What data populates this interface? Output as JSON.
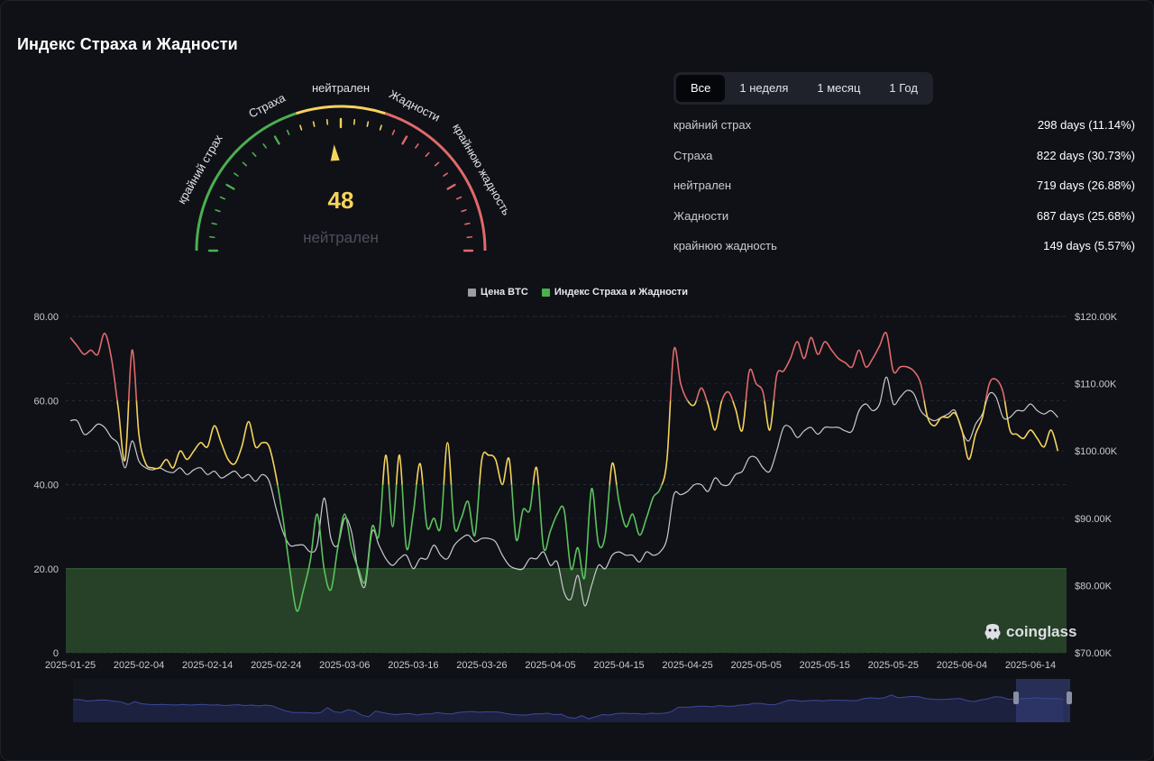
{
  "title": "Индекс Страха и Жадности",
  "gauge": {
    "value": "48",
    "value_label": "нейтрален",
    "zones": [
      "крайний страх",
      "Страха",
      "нейтрален",
      "Жадности",
      "крайнюю жадность"
    ],
    "colors": {
      "fear": "#4caf50",
      "neutral": "#f6d35b",
      "greed": "#e06a6a"
    }
  },
  "tabs": [
    "Все",
    "1 неделя",
    "1 месяц",
    "1 Год"
  ],
  "stats": [
    {
      "label": "крайний страх",
      "value": "298 days (11.14%)"
    },
    {
      "label": "Страха",
      "value": "822 days (30.73%)"
    },
    {
      "label": "нейтрален",
      "value": "719 days (26.88%)"
    },
    {
      "label": "Жадности",
      "value": "687 days (25.68%)"
    },
    {
      "label": "крайнюю жадность",
      "value": "149 days (5.57%)"
    }
  ],
  "legend": {
    "btc": "Цена BTC",
    "index": "Индекс Страха и Жадности"
  },
  "logo": "coinglass",
  "chart_data": {
    "type": "line",
    "x_ticks": [
      "2025-01-25",
      "2025-02-04",
      "2025-02-14",
      "2025-02-24",
      "2025-03-06",
      "2025-03-16",
      "2025-03-26",
      "2025-04-05",
      "2025-04-15",
      "2025-04-25",
      "2025-05-05",
      "2025-05-15",
      "2025-05-25",
      "2025-06-04",
      "2025-06-14"
    ],
    "y_left_ticks": [
      "0",
      "20.00",
      "40.00",
      "60.00",
      "80.00"
    ],
    "y_left_range": [
      0,
      80
    ],
    "y_right_ticks": [
      "$70.00K",
      "$80.00K",
      "$90.00K",
      "$100.00K",
      "$110.00K",
      "$120.00K"
    ],
    "y_right_range": [
      70000,
      120000
    ],
    "extreme_fear_band": [
      0,
      20
    ],
    "x_range_days": [
      0,
      145
    ],
    "series": [
      {
        "name": "Индекс Страха и Жадности",
        "points": [
          [
            0,
            75
          ],
          [
            1,
            73
          ],
          [
            2,
            71
          ],
          [
            3,
            72
          ],
          [
            4,
            71
          ],
          [
            5,
            76
          ],
          [
            6,
            70
          ],
          [
            7,
            58
          ],
          [
            8,
            46
          ],
          [
            9,
            72
          ],
          [
            10,
            52
          ],
          [
            11,
            45
          ],
          [
            12,
            44
          ],
          [
            13,
            44
          ],
          [
            14,
            46
          ],
          [
            15,
            44
          ],
          [
            16,
            48
          ],
          [
            17,
            46
          ],
          [
            18,
            48
          ],
          [
            19,
            50
          ],
          [
            20,
            49
          ],
          [
            21,
            54
          ],
          [
            22,
            50
          ],
          [
            23,
            46
          ],
          [
            24,
            45
          ],
          [
            25,
            49
          ],
          [
            26,
            55
          ],
          [
            27,
            49
          ],
          [
            28,
            50
          ],
          [
            29,
            49
          ],
          [
            30,
            42
          ],
          [
            31,
            32
          ],
          [
            32,
            20
          ],
          [
            33,
            10
          ],
          [
            34,
            15
          ],
          [
            35,
            22
          ],
          [
            36,
            33
          ],
          [
            37,
            20
          ],
          [
            38,
            15
          ],
          [
            39,
            25
          ],
          [
            40,
            33
          ],
          [
            41,
            25
          ],
          [
            42,
            20
          ],
          [
            43,
            17
          ],
          [
            44,
            30
          ],
          [
            45,
            28
          ],
          [
            46,
            47
          ],
          [
            47,
            30
          ],
          [
            48,
            47
          ],
          [
            49,
            25
          ],
          [
            50,
            33
          ],
          [
            51,
            45
          ],
          [
            52,
            30
          ],
          [
            53,
            32
          ],
          [
            54,
            30
          ],
          [
            55,
            50
          ],
          [
            56,
            30
          ],
          [
            57,
            32
          ],
          [
            58,
            36
          ],
          [
            59,
            28
          ],
          [
            60,
            46
          ],
          [
            61,
            47
          ],
          [
            62,
            46
          ],
          [
            63,
            40
          ],
          [
            64,
            46
          ],
          [
            65,
            27
          ],
          [
            66,
            34
          ],
          [
            67,
            34
          ],
          [
            68,
            44
          ],
          [
            69,
            25
          ],
          [
            70,
            29
          ],
          [
            71,
            33
          ],
          [
            72,
            34
          ],
          [
            73,
            20
          ],
          [
            74,
            25
          ],
          [
            75,
            18
          ],
          [
            76,
            39
          ],
          [
            77,
            26
          ],
          [
            78,
            28
          ],
          [
            79,
            45
          ],
          [
            80,
            36
          ],
          [
            81,
            30
          ],
          [
            82,
            33
          ],
          [
            83,
            28
          ],
          [
            84,
            32
          ],
          [
            85,
            37
          ],
          [
            86,
            39
          ],
          [
            87,
            46
          ],
          [
            88,
            72
          ],
          [
            89,
            64
          ],
          [
            90,
            60
          ],
          [
            91,
            59
          ],
          [
            92,
            63
          ],
          [
            93,
            59
          ],
          [
            94,
            53
          ],
          [
            95,
            60
          ],
          [
            96,
            62
          ],
          [
            97,
            58
          ],
          [
            98,
            53
          ],
          [
            99,
            67
          ],
          [
            100,
            64
          ],
          [
            101,
            62
          ],
          [
            102,
            53
          ],
          [
            103,
            66
          ],
          [
            104,
            67
          ],
          [
            105,
            70
          ],
          [
            106,
            74
          ],
          [
            107,
            70
          ],
          [
            108,
            75
          ],
          [
            109,
            71
          ],
          [
            110,
            74
          ],
          [
            111,
            72
          ],
          [
            112,
            70
          ],
          [
            113,
            69
          ],
          [
            114,
            68
          ],
          [
            115,
            72
          ],
          [
            116,
            68
          ],
          [
            117,
            70
          ],
          [
            118,
            73
          ],
          [
            119,
            76
          ],
          [
            120,
            67
          ],
          [
            121,
            68
          ],
          [
            122,
            68
          ],
          [
            123,
            67
          ],
          [
            124,
            64
          ],
          [
            125,
            56
          ],
          [
            126,
            54
          ],
          [
            127,
            56
          ],
          [
            128,
            56
          ],
          [
            129,
            57
          ],
          [
            130,
            53
          ],
          [
            131,
            46
          ],
          [
            132,
            52
          ],
          [
            133,
            56
          ],
          [
            134,
            64
          ],
          [
            135,
            65
          ],
          [
            136,
            62
          ],
          [
            137,
            53
          ],
          [
            138,
            52
          ],
          [
            139,
            51
          ],
          [
            140,
            53
          ],
          [
            141,
            51
          ],
          [
            142,
            49
          ],
          [
            143,
            53
          ],
          [
            144,
            48
          ]
        ]
      },
      {
        "name": "Цена BTC",
        "points": [
          [
            0,
            104500
          ],
          [
            1,
            104500
          ],
          [
            2,
            102500
          ],
          [
            3,
            103000
          ],
          [
            4,
            104000
          ],
          [
            5,
            103500
          ],
          [
            6,
            102000
          ],
          [
            7,
            101000
          ],
          [
            8,
            97500
          ],
          [
            9,
            101500
          ],
          [
            10,
            98500
          ],
          [
            11,
            97500
          ],
          [
            12,
            97200
          ],
          [
            13,
            97500
          ],
          [
            14,
            97000
          ],
          [
            15,
            96800
          ],
          [
            16,
            97500
          ],
          [
            17,
            96500
          ],
          [
            18,
            97200
          ],
          [
            19,
            97500
          ],
          [
            20,
            96500
          ],
          [
            21,
            97000
          ],
          [
            22,
            96000
          ],
          [
            23,
            96500
          ],
          [
            24,
            97000
          ],
          [
            25,
            96000
          ],
          [
            26,
            96500
          ],
          [
            27,
            95500
          ],
          [
            28,
            96500
          ],
          [
            29,
            95500
          ],
          [
            30,
            91500
          ],
          [
            31,
            88000
          ],
          [
            32,
            86000
          ],
          [
            33,
            86000
          ],
          [
            34,
            86000
          ],
          [
            35,
            85000
          ],
          [
            36,
            86000
          ],
          [
            37,
            93000
          ],
          [
            38,
            87000
          ],
          [
            39,
            86000
          ],
          [
            40,
            90000
          ],
          [
            41,
            88000
          ],
          [
            42,
            82000
          ],
          [
            43,
            80000
          ],
          [
            44,
            88000
          ],
          [
            45,
            86000
          ],
          [
            46,
            84000
          ],
          [
            47,
            83000
          ],
          [
            48,
            84000
          ],
          [
            49,
            84500
          ],
          [
            50,
            82500
          ],
          [
            51,
            84000
          ],
          [
            52,
            84000
          ],
          [
            53,
            86000
          ],
          [
            54,
            84500
          ],
          [
            55,
            84000
          ],
          [
            56,
            86000
          ],
          [
            57,
            87000
          ],
          [
            58,
            87500
          ],
          [
            59,
            86500
          ],
          [
            60,
            87000
          ],
          [
            61,
            87000
          ],
          [
            62,
            86500
          ],
          [
            63,
            84500
          ],
          [
            64,
            83000
          ],
          [
            65,
            82500
          ],
          [
            66,
            82500
          ],
          [
            67,
            84000
          ],
          [
            68,
            84000
          ],
          [
            69,
            85000
          ],
          [
            70,
            83000
          ],
          [
            71,
            83500
          ],
          [
            72,
            79000
          ],
          [
            73,
            78000
          ],
          [
            74,
            81500
          ],
          [
            75,
            77000
          ],
          [
            76,
            80000
          ],
          [
            77,
            83000
          ],
          [
            78,
            82500
          ],
          [
            79,
            84500
          ],
          [
            80,
            85000
          ],
          [
            81,
            84500
          ],
          [
            82,
            84500
          ],
          [
            83,
            83500
          ],
          [
            84,
            85000
          ],
          [
            85,
            84500
          ],
          [
            86,
            85000
          ],
          [
            87,
            87000
          ],
          [
            88,
            93500
          ],
          [
            89,
            93500
          ],
          [
            90,
            94000
          ],
          [
            91,
            95000
          ],
          [
            92,
            95000
          ],
          [
            93,
            94000
          ],
          [
            94,
            96000
          ],
          [
            95,
            95000
          ],
          [
            96,
            95000
          ],
          [
            97,
            96500
          ],
          [
            98,
            97000
          ],
          [
            99,
            99000
          ],
          [
            100,
            99000
          ],
          [
            101,
            97500
          ],
          [
            102,
            97000
          ],
          [
            103,
            100000
          ],
          [
            104,
            103500
          ],
          [
            105,
            103500
          ],
          [
            106,
            102000
          ],
          [
            107,
            103000
          ],
          [
            108,
            103500
          ],
          [
            109,
            102500
          ],
          [
            110,
            103500
          ],
          [
            111,
            103500
          ],
          [
            112,
            103500
          ],
          [
            113,
            103000
          ],
          [
            114,
            103000
          ],
          [
            115,
            106000
          ],
          [
            116,
            107000
          ],
          [
            117,
            106000
          ],
          [
            118,
            107000
          ],
          [
            119,
            111000
          ],
          [
            120,
            107000
          ],
          [
            121,
            108000
          ],
          [
            122,
            109000
          ],
          [
            123,
            108500
          ],
          [
            124,
            106000
          ],
          [
            125,
            105000
          ],
          [
            126,
            104500
          ],
          [
            127,
            105000
          ],
          [
            128,
            105500
          ],
          [
            129,
            106000
          ],
          [
            130,
            103000
          ],
          [
            131,
            101500
          ],
          [
            132,
            104000
          ],
          [
            133,
            105500
          ],
          [
            134,
            108500
          ],
          [
            135,
            108000
          ],
          [
            136,
            105000
          ],
          [
            137,
            105000
          ],
          [
            138,
            106000
          ],
          [
            139,
            106000
          ],
          [
            140,
            107000
          ],
          [
            141,
            106000
          ],
          [
            142,
            105500
          ],
          [
            143,
            106000
          ],
          [
            144,
            105000
          ]
        ]
      }
    ]
  }
}
